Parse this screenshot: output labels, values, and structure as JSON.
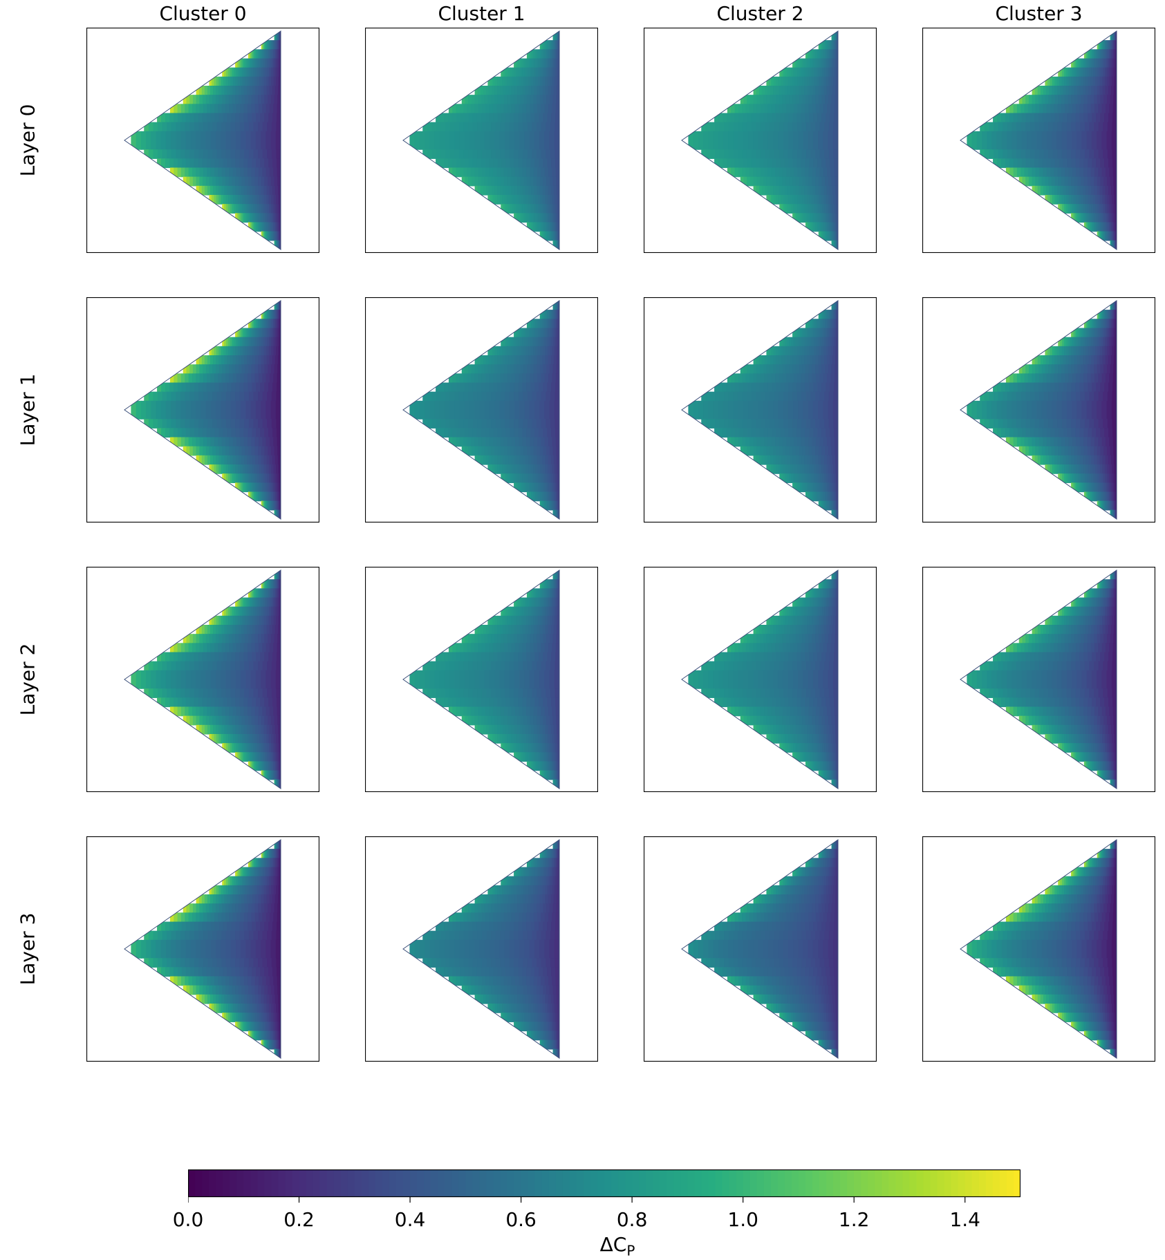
{
  "chart_data": {
    "type": "heatmap",
    "description_free": true,
    "columns": [
      "Cluster 0",
      "Cluster 1",
      "Cluster 2",
      "Cluster 3"
    ],
    "rows": [
      "Layer 0",
      "Layer 1",
      "Layer 2",
      "Layer 3"
    ],
    "colormap": "viridis",
    "colorbar": {
      "label_main": "ΔC",
      "label_sub": "P",
      "range": [
        0.0,
        1.5
      ],
      "ticks": [
        "0.0",
        "0.2",
        "0.4",
        "0.6",
        "0.8",
        "1.0",
        "1.2",
        "1.4"
      ]
    },
    "panels": [
      [
        {
          "le_value": 1.45,
          "center_value": 0.58,
          "te_value": 0.15
        },
        {
          "le_value": 1.02,
          "center_value": 0.72,
          "te_value": 0.35
        },
        {
          "le_value": 1.05,
          "center_value": 0.72,
          "te_value": 0.38
        },
        {
          "le_value": 1.25,
          "center_value": 0.55,
          "te_value": 0.1
        }
      ],
      [
        {
          "le_value": 1.45,
          "center_value": 0.55,
          "te_value": 0.1
        },
        {
          "le_value": 0.9,
          "center_value": 0.62,
          "te_value": 0.25
        },
        {
          "le_value": 0.92,
          "center_value": 0.62,
          "te_value": 0.28
        },
        {
          "le_value": 1.22,
          "center_value": 0.55,
          "te_value": 0.08
        }
      ],
      [
        {
          "le_value": 1.45,
          "center_value": 0.58,
          "te_value": 0.15
        },
        {
          "le_value": 1.0,
          "center_value": 0.68,
          "te_value": 0.3
        },
        {
          "le_value": 1.0,
          "center_value": 0.66,
          "te_value": 0.32
        },
        {
          "le_value": 1.18,
          "center_value": 0.58,
          "te_value": 0.12
        }
      ],
      [
        {
          "le_value": 1.45,
          "center_value": 0.5,
          "te_value": 0.1
        },
        {
          "le_value": 0.88,
          "center_value": 0.55,
          "te_value": 0.2
        },
        {
          "le_value": 0.98,
          "center_value": 0.5,
          "te_value": 0.22
        },
        {
          "le_value": 1.38,
          "center_value": 0.55,
          "te_value": 0.08
        }
      ]
    ]
  }
}
